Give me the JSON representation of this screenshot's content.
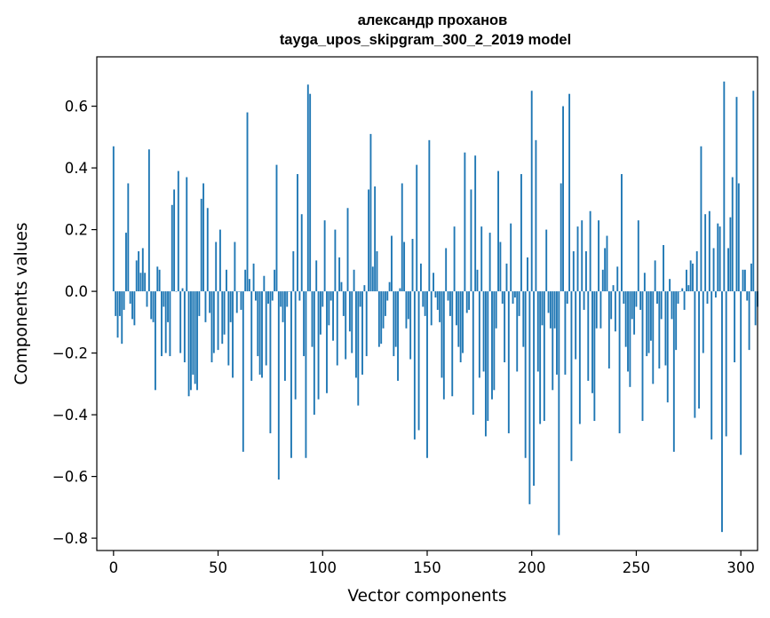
{
  "chart_data": {
    "type": "bar",
    "title": "александр проханов",
    "subtitle": "tayga_upos_skipgram_300_2_2019 model",
    "xlabel": "Vector components",
    "ylabel": "Components values",
    "xlim": [
      -8,
      308
    ],
    "ylim": [
      -0.84,
      0.76
    ],
    "xticks": [
      0,
      50,
      100,
      150,
      200,
      250,
      300
    ],
    "xtick_labels": [
      "0",
      "50",
      "100",
      "150",
      "200",
      "250",
      "300"
    ],
    "yticks": [
      -0.8,
      -0.6,
      -0.4,
      -0.2,
      0.0,
      0.2,
      0.4,
      0.6
    ],
    "ytick_labels": [
      "−0.8",
      "−0.6",
      "−0.4",
      "−0.2",
      "0.0",
      "0.2",
      "0.4",
      "0.6"
    ],
    "bar_color": "#1f77b4",
    "grid": false,
    "values": [
      0.47,
      -0.08,
      -0.15,
      -0.08,
      -0.17,
      -0.06,
      0.19,
      0.35,
      -0.04,
      -0.09,
      -0.11,
      0.1,
      0.13,
      0.06,
      0.14,
      0.06,
      -0.05,
      0.46,
      -0.09,
      -0.1,
      -0.32,
      0.08,
      0.07,
      -0.21,
      -0.05,
      -0.2,
      -0.1,
      -0.21,
      0.28,
      0.33,
      0.0,
      0.39,
      -0.2,
      0.01,
      -0.23,
      0.37,
      -0.34,
      -0.32,
      -0.27,
      -0.3,
      -0.32,
      -0.08,
      0.3,
      0.35,
      -0.1,
      0.27,
      -0.07,
      -0.23,
      -0.2,
      0.16,
      -0.19,
      0.2,
      -0.17,
      -0.14,
      0.07,
      -0.24,
      -0.1,
      -0.28,
      0.16,
      -0.07,
      0.0,
      -0.06,
      -0.52,
      0.07,
      0.58,
      0.04,
      -0.29,
      0.09,
      -0.03,
      -0.21,
      -0.27,
      -0.28,
      0.05,
      -0.24,
      -0.04,
      -0.46,
      -0.03,
      0.07,
      0.41,
      -0.61,
      -0.05,
      -0.1,
      -0.29,
      -0.05,
      0.0,
      -0.54,
      0.13,
      -0.35,
      0.38,
      -0.03,
      0.25,
      -0.21,
      -0.54,
      0.67,
      0.64,
      -0.18,
      -0.4,
      0.1,
      -0.35,
      -0.14,
      -0.05,
      0.23,
      -0.33,
      -0.11,
      -0.03,
      -0.16,
      0.2,
      -0.24,
      0.11,
      0.03,
      -0.08,
      -0.22,
      0.27,
      -0.13,
      -0.2,
      0.07,
      -0.28,
      -0.37,
      -0.05,
      -0.27,
      0.02,
      -0.21,
      0.33,
      0.51,
      0.08,
      0.34,
      0.13,
      -0.18,
      -0.17,
      -0.12,
      -0.08,
      -0.03,
      0.03,
      0.18,
      -0.21,
      -0.18,
      -0.29,
      0.01,
      0.35,
      0.16,
      -0.12,
      -0.09,
      -0.22,
      0.17,
      -0.48,
      0.41,
      -0.45,
      0.09,
      -0.05,
      -0.08,
      -0.54,
      0.49,
      -0.11,
      0.06,
      -0.02,
      -0.06,
      -0.1,
      -0.28,
      -0.35,
      0.14,
      -0.03,
      -0.08,
      -0.34,
      0.21,
      -0.11,
      -0.18,
      -0.23,
      -0.2,
      0.45,
      -0.07,
      -0.06,
      0.33,
      -0.4,
      0.44,
      0.07,
      -0.28,
      0.21,
      -0.26,
      -0.47,
      -0.42,
      0.19,
      -0.35,
      -0.32,
      -0.12,
      0.39,
      0.16,
      -0.04,
      -0.23,
      0.09,
      -0.46,
      0.22,
      -0.04,
      -0.02,
      -0.26,
      -0.08,
      0.38,
      -0.18,
      -0.54,
      0.11,
      -0.69,
      0.65,
      -0.63,
      0.49,
      -0.26,
      -0.43,
      -0.11,
      -0.42,
      0.2,
      -0.07,
      -0.12,
      -0.32,
      -0.12,
      -0.27,
      -0.79,
      0.35,
      0.6,
      -0.27,
      -0.04,
      0.64,
      -0.55,
      0.13,
      -0.22,
      0.21,
      -0.43,
      0.23,
      -0.06,
      0.13,
      -0.29,
      0.26,
      -0.33,
      -0.42,
      -0.12,
      0.23,
      -0.12,
      0.07,
      0.14,
      0.18,
      -0.25,
      -0.09,
      0.02,
      -0.13,
      0.08,
      -0.46,
      0.38,
      -0.04,
      -0.18,
      -0.26,
      -0.31,
      -0.09,
      -0.14,
      -0.05,
      0.23,
      -0.06,
      -0.42,
      0.06,
      -0.21,
      -0.2,
      -0.16,
      -0.3,
      0.1,
      -0.04,
      -0.25,
      -0.09,
      0.15,
      -0.24,
      -0.36,
      0.04,
      -0.09,
      -0.52,
      -0.19,
      -0.04,
      0.0,
      0.01,
      -0.06,
      0.07,
      0.02,
      0.1,
      0.09,
      -0.41,
      0.13,
      -0.38,
      0.47,
      -0.2,
      0.25,
      -0.04,
      0.26,
      -0.48,
      0.14,
      -0.02,
      0.22,
      0.21,
      -0.78,
      0.68,
      -0.47,
      0.14,
      0.24,
      0.37,
      -0.23,
      0.63,
      0.35,
      -0.53,
      0.07,
      0.07,
      -0.03,
      -0.19,
      0.09,
      0.65,
      -0.11,
      -0.05
    ]
  }
}
